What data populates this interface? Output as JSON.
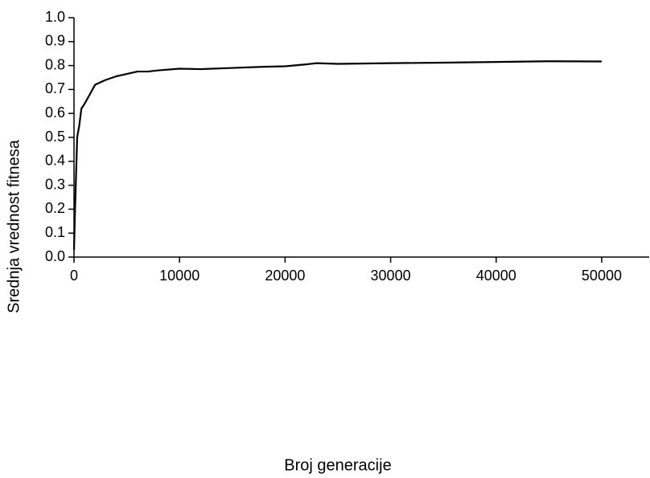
{
  "chart_data": {
    "type": "line",
    "x_label": "Broj generacije",
    "y_label": "Srednja vrednost fitnesa",
    "x": [
      0,
      100,
      200,
      300,
      500,
      700,
      1000,
      1500,
      2000,
      3000,
      4000,
      5000,
      6000,
      7000,
      8000,
      10000,
      12000,
      15000,
      18000,
      20000,
      22000,
      23000,
      25000,
      30000,
      35000,
      40000,
      45000,
      50000
    ],
    "series": [
      {
        "color": "#000000",
        "values": [
          0.03,
          0.2,
          0.35,
          0.5,
          0.55,
          0.62,
          0.64,
          0.68,
          0.72,
          0.74,
          0.755,
          0.765,
          0.775,
          0.775,
          0.78,
          0.787,
          0.785,
          0.79,
          0.795,
          0.797,
          0.805,
          0.81,
          0.807,
          0.81,
          0.812,
          0.815,
          0.818,
          0.817
        ]
      }
    ],
    "xlim": [
      0,
      54500
    ],
    "xticks": [
      0,
      10000,
      20000,
      30000,
      40000,
      50000
    ],
    "ylim": [
      0,
      1
    ],
    "yticks": [
      {
        "value": 0,
        "label": "0.0"
      },
      0.1,
      0.2,
      0.3,
      0.4,
      0.5,
      0.6,
      0.7,
      0.8,
      0.9,
      {
        "value": 1,
        "label": "1.0"
      }
    ],
    "grid": false
  }
}
